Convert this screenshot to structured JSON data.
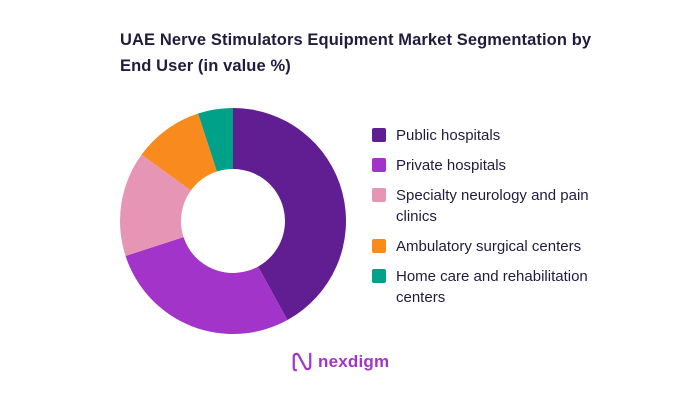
{
  "title": "UAE Nerve Stimulators Equipment Market Segmentation by End User (in value %)",
  "chart_data": {
    "type": "pie",
    "subtype": "donut",
    "title": "UAE Nerve Stimulators Equipment Market Segmentation by End User (in value %)",
    "legend_position": "right",
    "labels": [
      "Public hospitals",
      "Private hospitals",
      "Specialty neurology and pain clinics",
      "Ambulatory surgical centers",
      "Home care and rehabilitation centers"
    ],
    "values": [
      42,
      28,
      15,
      10,
      5
    ],
    "colors": [
      "#611e92",
      "#a234c9",
      "#e795b5",
      "#f98a1d",
      "#00a189"
    ],
    "start_angle_deg": -90,
    "direction": "clockwise",
    "inner_radius_ratio": 0.46
  },
  "logo": {
    "text": "nexdigm",
    "color": "#a234c9"
  }
}
